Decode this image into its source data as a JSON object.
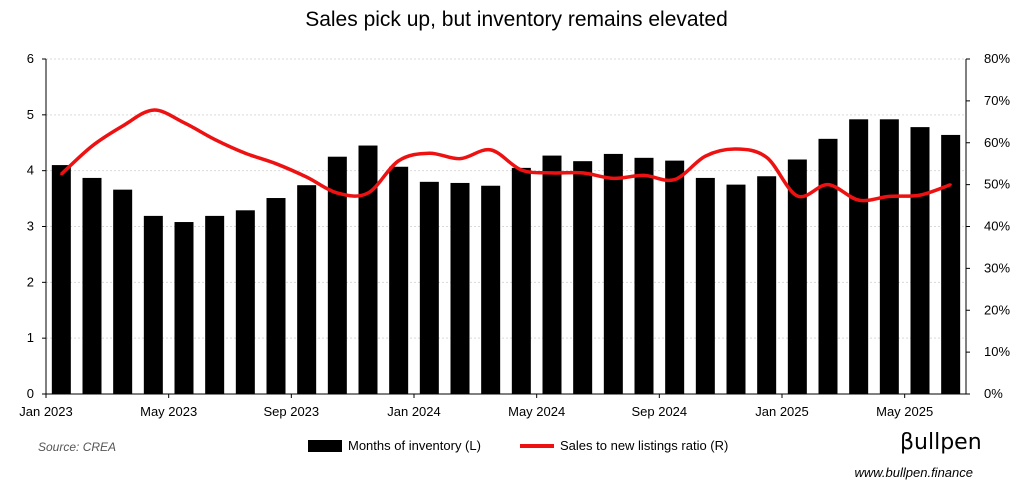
{
  "title": "Sales pick up, but inventory remains elevated",
  "source": "Source: CREA",
  "brand": "βullpen",
  "website": "www.bullpen.finance",
  "legend": {
    "bars": "Months of inventory (L)",
    "line": "Sales to new listings ratio (R)"
  },
  "colors": {
    "bars": "#000000",
    "line": "#ee1111",
    "grid": "#d9d9d9"
  },
  "chart_data": {
    "type": "bar+line",
    "categories": [
      "Jan 2023",
      "Feb 2023",
      "Mar 2023",
      "Apr 2023",
      "May 2023",
      "Jun 2023",
      "Jul 2023",
      "Aug 2023",
      "Sep 2023",
      "Oct 2023",
      "Nov 2023",
      "Dec 2023",
      "Jan 2024",
      "Feb 2024",
      "Mar 2024",
      "Apr 2024",
      "May 2024",
      "Jun 2024",
      "Jul 2024",
      "Aug 2024",
      "Sep 2024",
      "Oct 2024",
      "Nov 2024",
      "Dec 2024",
      "Jan 2025",
      "Feb 2025",
      "Mar 2025",
      "Apr 2025",
      "May 2025",
      "Jun 2025"
    ],
    "x_tick_labels": [
      "Jan 2023",
      "May 2023",
      "Sep 2023",
      "Jan 2024",
      "May 2024",
      "Sep 2024",
      "Jan 2025",
      "May 2025"
    ],
    "series": [
      {
        "name": "Months of inventory (L)",
        "axis": "left",
        "type": "bar",
        "values": [
          4.1,
          3.87,
          3.66,
          3.19,
          3.08,
          3.19,
          3.29,
          3.51,
          3.74,
          4.25,
          4.45,
          4.07,
          3.8,
          3.78,
          3.73,
          4.05,
          4.27,
          4.17,
          4.3,
          4.23,
          4.18,
          3.87,
          3.75,
          3.9,
          4.2,
          4.57,
          4.92,
          4.92,
          4.78,
          4.64
        ]
      },
      {
        "name": "Sales to new listings ratio (R)",
        "axis": "right",
        "type": "line",
        "values": [
          52.5,
          59.2,
          64.0,
          67.8,
          64.8,
          60.8,
          57.5,
          55.0,
          51.8,
          48.0,
          48.0,
          55.7,
          57.5,
          56.2,
          58.3,
          53.5,
          52.8,
          52.8,
          51.5,
          52.2,
          51.2,
          56.8,
          58.5,
          56.5,
          47.3,
          50.0,
          46.3,
          47.2,
          47.5,
          50.0
        ]
      }
    ],
    "y_left": {
      "range": [
        0,
        6
      ],
      "ticks": [
        "0",
        "1",
        "2",
        "3",
        "4",
        "5",
        "6"
      ]
    },
    "y_right": {
      "range": [
        0,
        80
      ],
      "ticks": [
        "0%",
        "10%",
        "20%",
        "30%",
        "40%",
        "50%",
        "60%",
        "70%",
        "80%"
      ]
    },
    "grid": true,
    "legend_position": "bottom"
  }
}
